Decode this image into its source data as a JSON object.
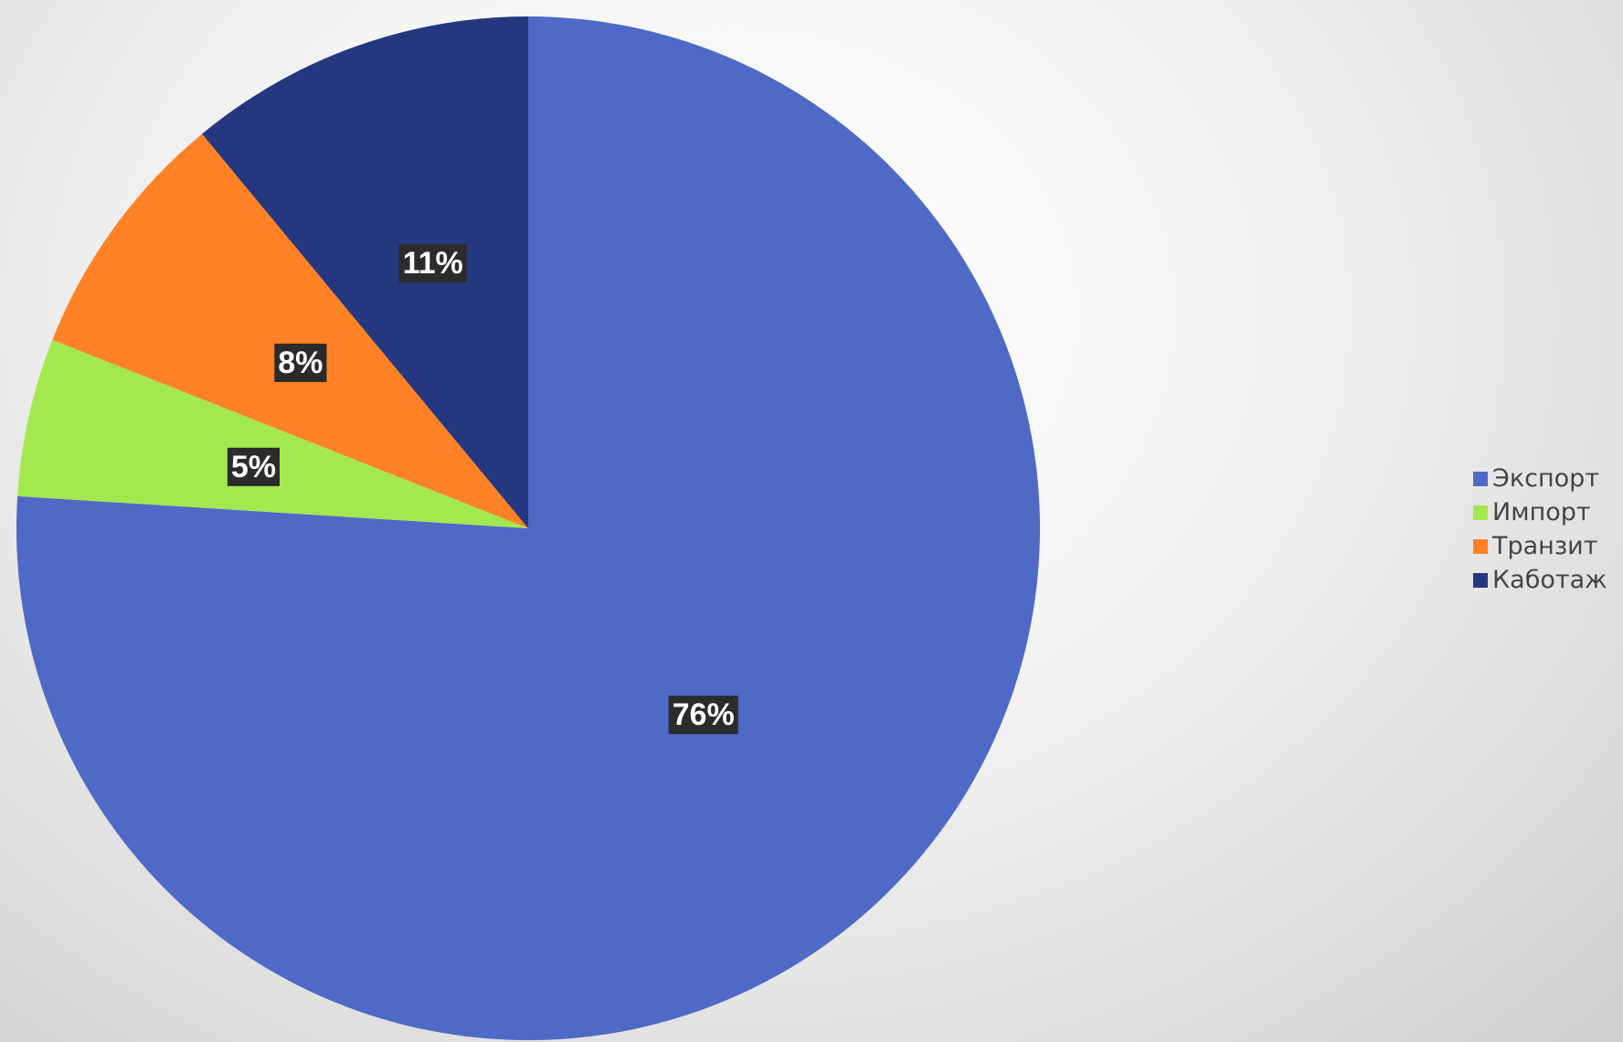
{
  "chart_data": {
    "type": "pie",
    "title": "",
    "start_angle_deg": 0,
    "direction": "clockwise",
    "legend_position": "right",
    "slices": [
      {
        "name": "Экспорт",
        "label": "76%",
        "value": 76,
        "color": "#4f69c6"
      },
      {
        "name": "Импорт",
        "label": "5%",
        "value": 5,
        "color": "#a4e84f"
      },
      {
        "name": "Транзит",
        "label": "8%",
        "value": 8,
        "color": "#ff8226"
      },
      {
        "name": "Каботаж",
        "label": "11%",
        "value": 11,
        "color": "#25387f"
      }
    ]
  }
}
